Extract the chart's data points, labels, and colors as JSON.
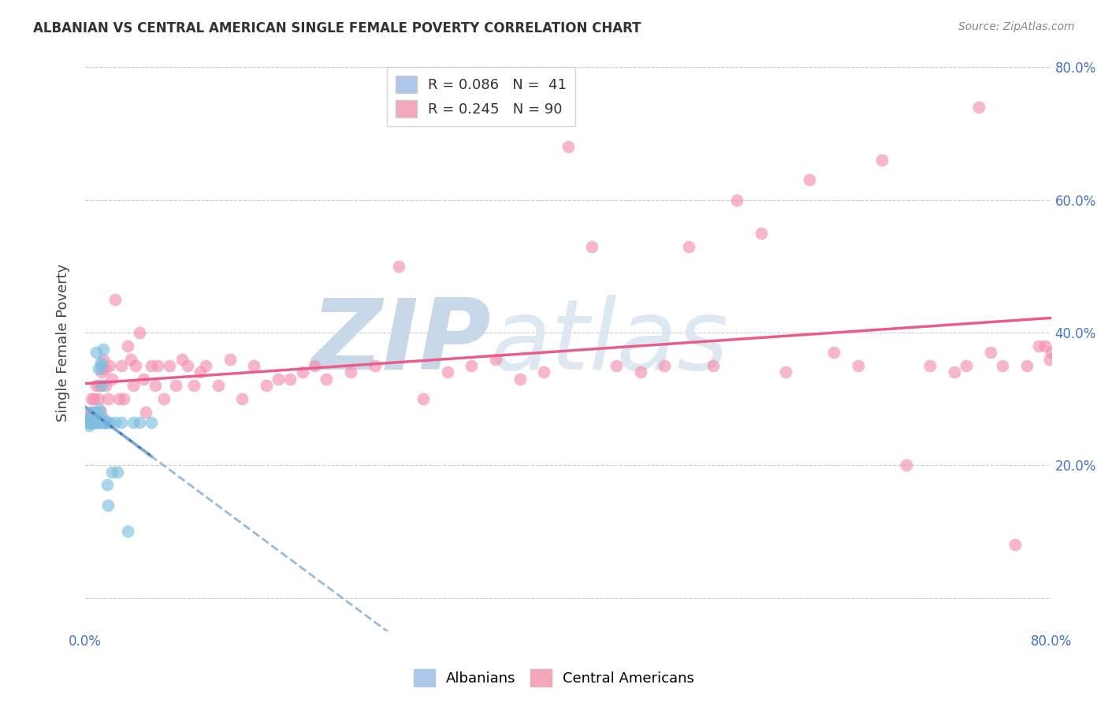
{
  "title": "ALBANIAN VS CENTRAL AMERICAN SINGLE FEMALE POVERTY CORRELATION CHART",
  "source": "Source: ZipAtlas.com",
  "ylabel": "Single Female Poverty",
  "yticks": [
    0.0,
    0.2,
    0.4,
    0.6,
    0.8
  ],
  "ytick_labels": [
    "",
    "20.0%",
    "40.0%",
    "60.0%",
    "80.0%"
  ],
  "xlim": [
    0.0,
    0.8
  ],
  "ylim": [
    -0.05,
    0.82
  ],
  "albania_color": "#7fbfdf",
  "central_american_color": "#f48fb1",
  "trendline_albania_color": "#3d7dbf",
  "trendline_ca_color": "#e85d8a",
  "dashed_line_color": "#8ab4d8",
  "background_color": "#ffffff",
  "watermark_zip": "ZIP",
  "watermark_atlas": "atlas",
  "watermark_color": "#c8d8e8",
  "albanian_x": [
    0.001,
    0.002,
    0.003,
    0.004,
    0.005,
    0.005,
    0.006,
    0.007,
    0.007,
    0.008,
    0.008,
    0.009,
    0.009,
    0.01,
    0.01,
    0.01,
    0.011,
    0.011,
    0.012,
    0.012,
    0.013,
    0.013,
    0.014,
    0.014,
    0.015,
    0.015,
    0.016,
    0.016,
    0.017,
    0.017,
    0.018,
    0.019,
    0.02,
    0.022,
    0.025,
    0.027,
    0.03,
    0.035,
    0.04,
    0.045,
    0.055
  ],
  "albanian_y": [
    0.265,
    0.27,
    0.26,
    0.265,
    0.27,
    0.265,
    0.28,
    0.27,
    0.265,
    0.265,
    0.27,
    0.265,
    0.37,
    0.265,
    0.27,
    0.28,
    0.27,
    0.345,
    0.265,
    0.285,
    0.355,
    0.35,
    0.32,
    0.265,
    0.375,
    0.27,
    0.265,
    0.265,
    0.265,
    0.265,
    0.17,
    0.14,
    0.265,
    0.19,
    0.265,
    0.19,
    0.265,
    0.1,
    0.265,
    0.265,
    0.265
  ],
  "ca_x": [
    0.001,
    0.002,
    0.003,
    0.004,
    0.005,
    0.005,
    0.006,
    0.007,
    0.008,
    0.009,
    0.01,
    0.011,
    0.012,
    0.013,
    0.014,
    0.015,
    0.016,
    0.017,
    0.018,
    0.019,
    0.02,
    0.022,
    0.025,
    0.028,
    0.03,
    0.032,
    0.035,
    0.038,
    0.04,
    0.042,
    0.045,
    0.048,
    0.05,
    0.055,
    0.058,
    0.06,
    0.065,
    0.07,
    0.075,
    0.08,
    0.085,
    0.09,
    0.095,
    0.1,
    0.11,
    0.12,
    0.13,
    0.14,
    0.15,
    0.16,
    0.17,
    0.18,
    0.19,
    0.2,
    0.22,
    0.24,
    0.26,
    0.28,
    0.3,
    0.32,
    0.34,
    0.36,
    0.38,
    0.4,
    0.42,
    0.44,
    0.46,
    0.48,
    0.5,
    0.52,
    0.54,
    0.56,
    0.58,
    0.6,
    0.62,
    0.64,
    0.66,
    0.68,
    0.7,
    0.72,
    0.73,
    0.74,
    0.75,
    0.76,
    0.77,
    0.78,
    0.79,
    0.795,
    0.799,
    0.8
  ],
  "ca_y": [
    0.27,
    0.28,
    0.265,
    0.27,
    0.265,
    0.3,
    0.28,
    0.3,
    0.27,
    0.32,
    0.265,
    0.3,
    0.32,
    0.28,
    0.34,
    0.36,
    0.345,
    0.32,
    0.265,
    0.3,
    0.35,
    0.33,
    0.45,
    0.3,
    0.35,
    0.3,
    0.38,
    0.36,
    0.32,
    0.35,
    0.4,
    0.33,
    0.28,
    0.35,
    0.32,
    0.35,
    0.3,
    0.35,
    0.32,
    0.36,
    0.35,
    0.32,
    0.34,
    0.35,
    0.32,
    0.36,
    0.3,
    0.35,
    0.32,
    0.33,
    0.33,
    0.34,
    0.35,
    0.33,
    0.34,
    0.35,
    0.5,
    0.3,
    0.34,
    0.35,
    0.36,
    0.33,
    0.34,
    0.68,
    0.53,
    0.35,
    0.34,
    0.35,
    0.53,
    0.35,
    0.6,
    0.55,
    0.34,
    0.63,
    0.37,
    0.35,
    0.66,
    0.2,
    0.35,
    0.34,
    0.35,
    0.74,
    0.37,
    0.35,
    0.08,
    0.35,
    0.38,
    0.38,
    0.36,
    0.37
  ]
}
